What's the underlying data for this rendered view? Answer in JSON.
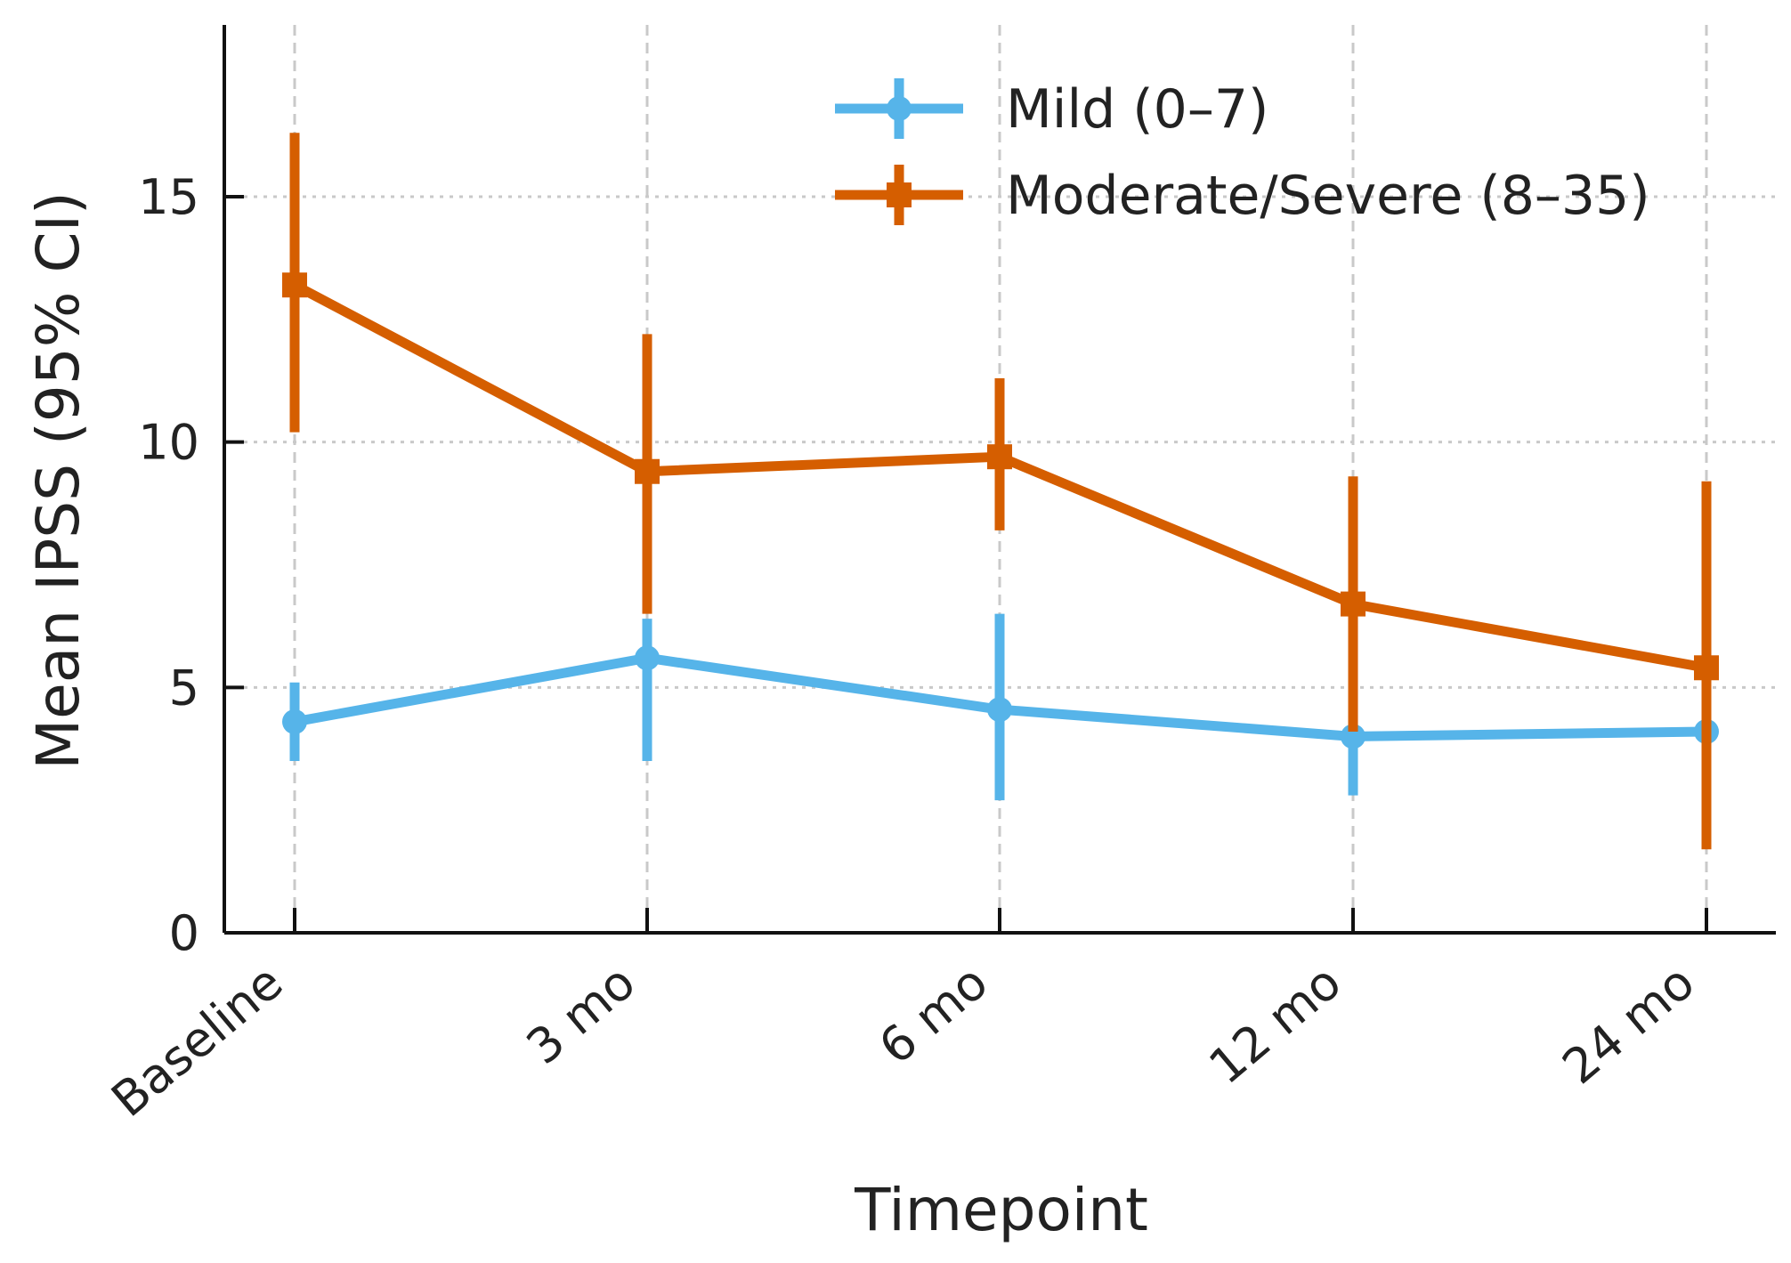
{
  "chart_data": {
    "type": "line",
    "title": "",
    "xlabel": "Timepoint",
    "ylabel": "Mean IPSS (95% CI)",
    "categories": [
      "Baseline",
      "3 mo",
      "6 mo",
      "12 mo",
      "24 mo"
    ],
    "ylim": [
      0,
      18.5
    ],
    "yticks": [
      0,
      5,
      10,
      15
    ],
    "ytick_labels": [
      "0",
      "5",
      "10",
      "15"
    ],
    "grid": true,
    "legend_position": "top-right",
    "series": [
      {
        "name": "Mild (0–7)",
        "color": "#56B4E9",
        "marker": "circle",
        "values": [
          4.3,
          5.6,
          4.55,
          4.0,
          4.1
        ],
        "ci_lower": [
          3.5,
          3.5,
          2.7,
          2.8,
          3.6
        ],
        "ci_upper": [
          5.1,
          6.4,
          6.5,
          5.0,
          4.6
        ]
      },
      {
        "name": "Moderate/Severe (8–35)",
        "color": "#D55E00",
        "marker": "square",
        "values": [
          13.2,
          9.4,
          9.7,
          6.7,
          5.4
        ],
        "ci_lower": [
          10.2,
          6.5,
          8.2,
          4.1,
          1.7
        ],
        "ci_upper": [
          16.3,
          12.2,
          11.3,
          9.3,
          9.2
        ]
      }
    ]
  }
}
